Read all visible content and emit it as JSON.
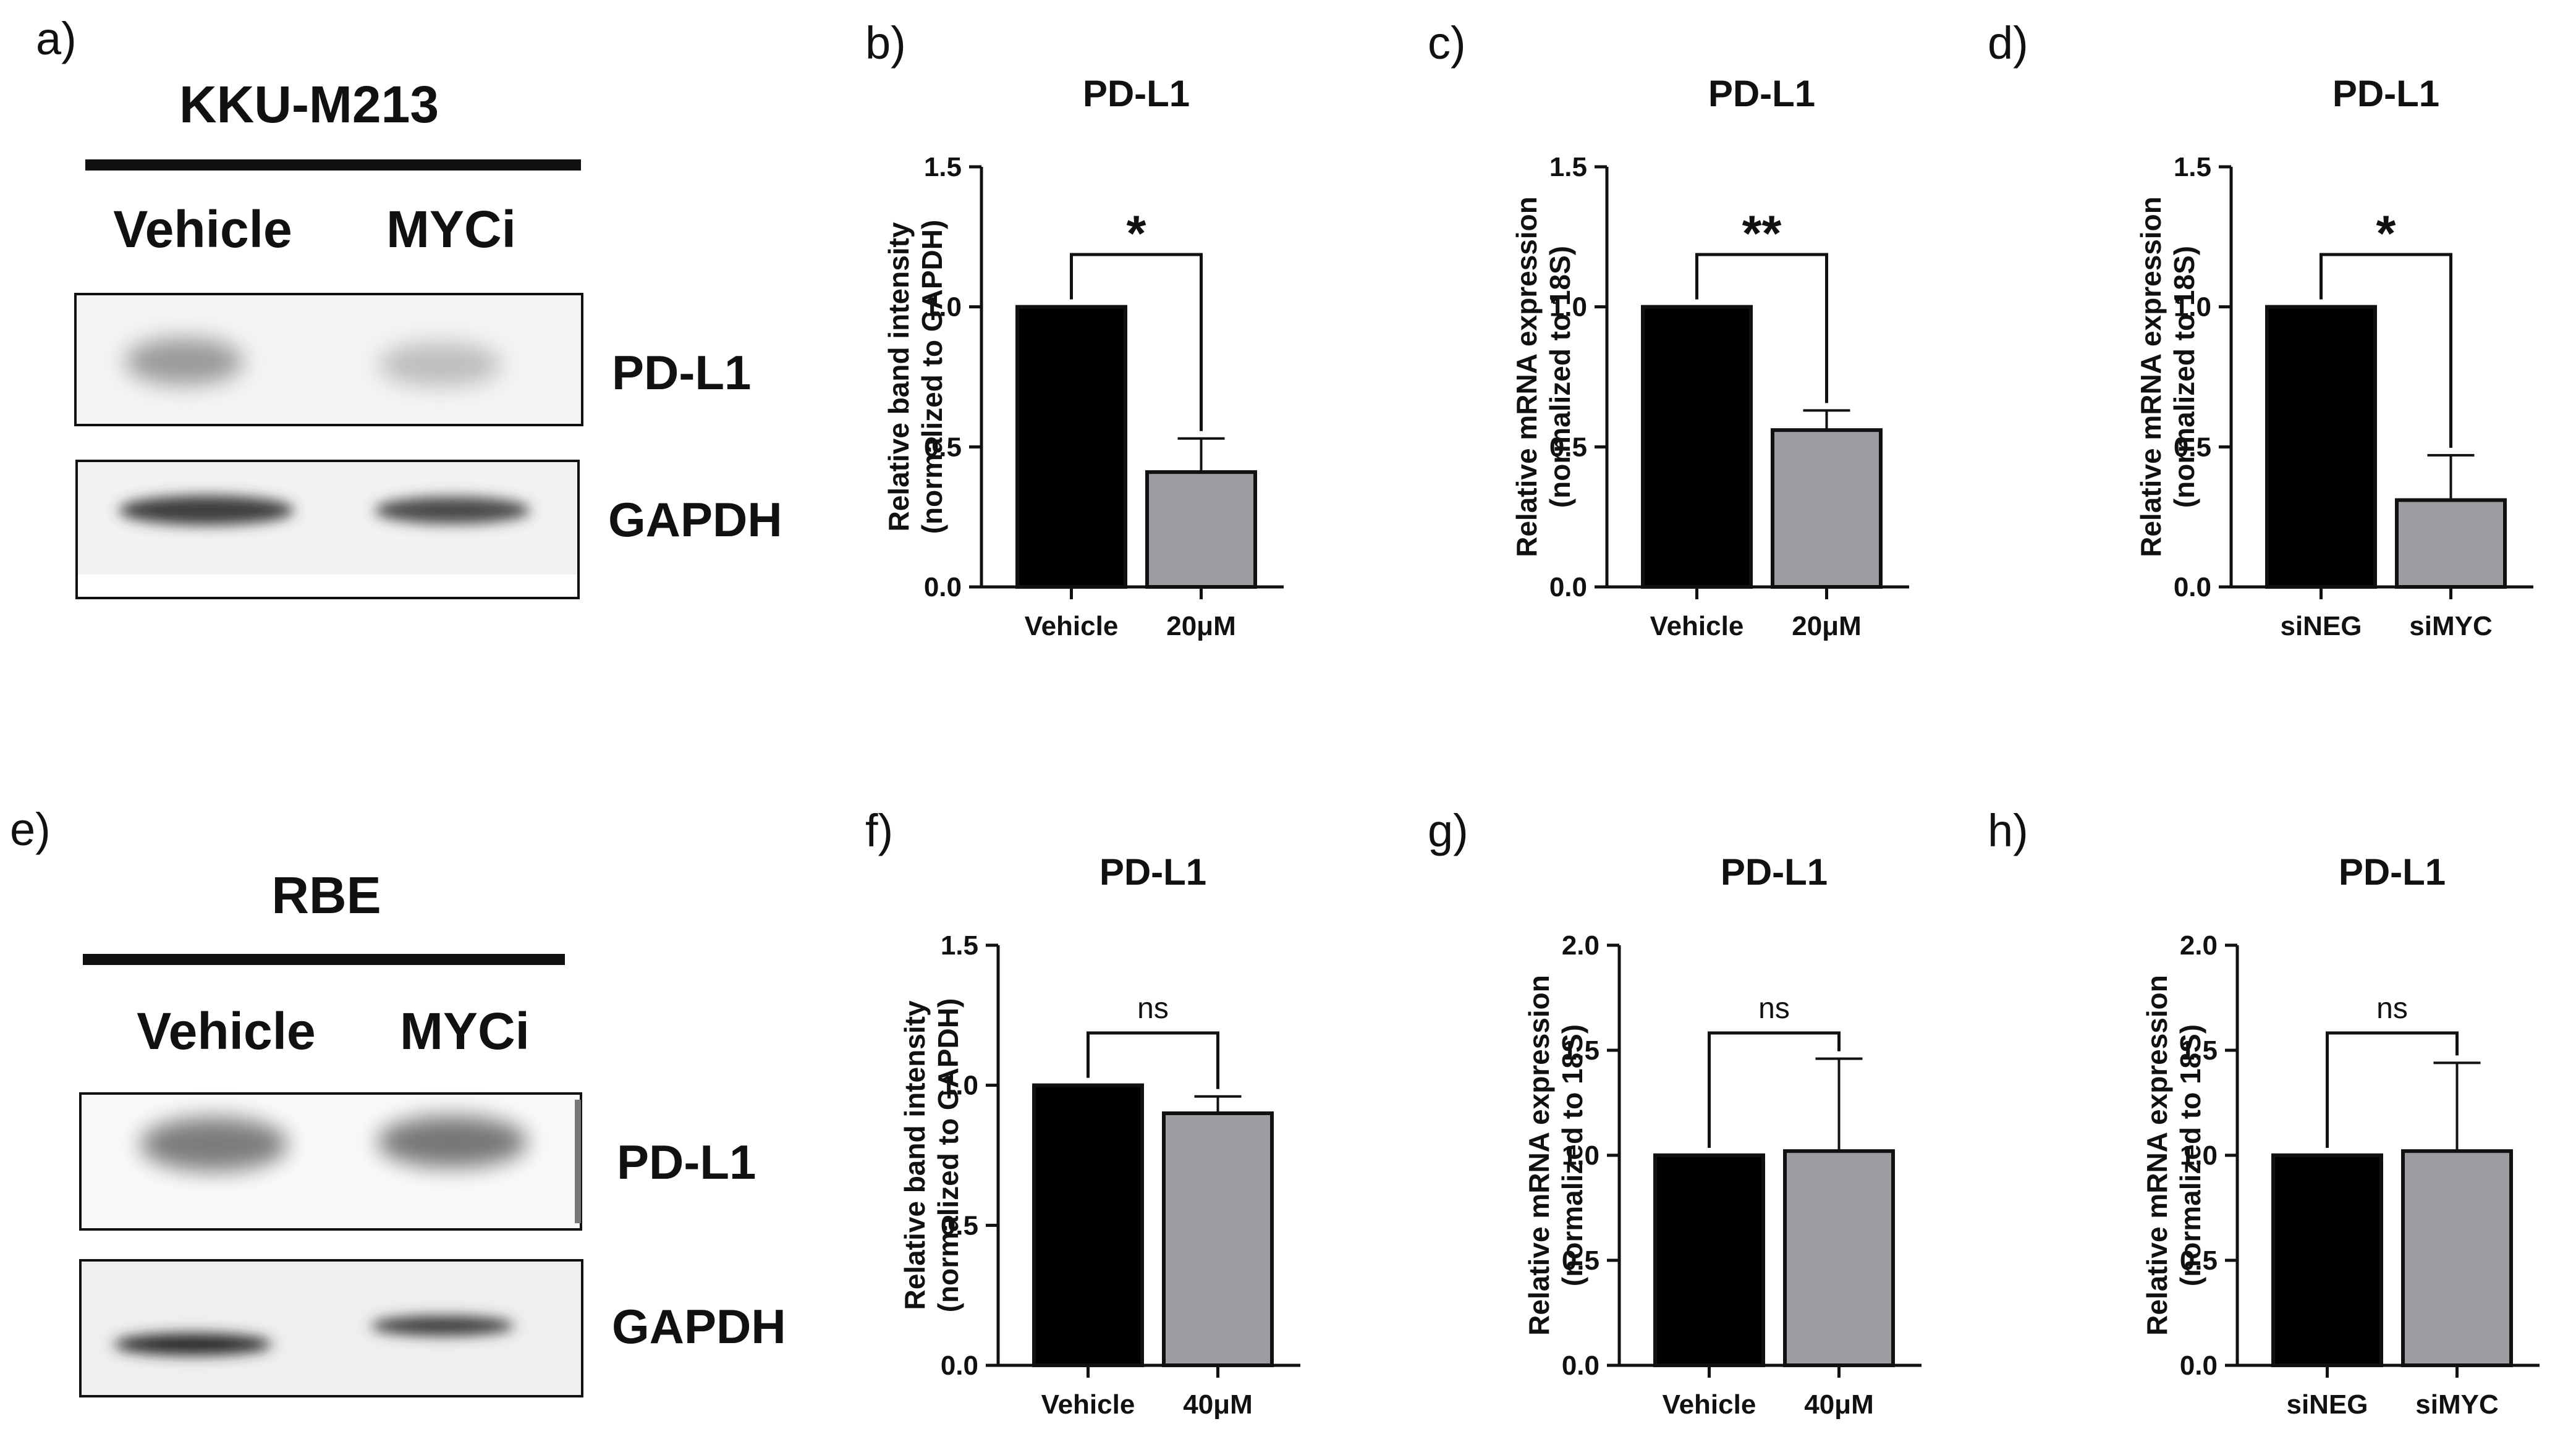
{
  "blots": [
    {
      "panel": "a)",
      "title": "KKU-M213",
      "lanes": [
        "Vehicle",
        "MYCi"
      ],
      "proteins": [
        "PD-L1",
        "GAPDH"
      ]
    },
    {
      "panel": "e)",
      "title": "RBE",
      "lanes": [
        "Vehicle",
        "MYCi"
      ],
      "proteins": [
        "PD-L1",
        "GAPDH"
      ]
    }
  ],
  "chart_data": [
    {
      "panel": "b)",
      "type": "bar",
      "title": "PD-L1",
      "categories": [
        "Vehicle",
        "20μM"
      ],
      "values": [
        1.0,
        0.41
      ],
      "errors": [
        0,
        0.12
      ],
      "ylabel_lines": [
        "Relative band intensity",
        "(normalized to GAPDH)"
      ],
      "ylim": [
        0,
        1.5
      ],
      "yticks": [
        "0.0",
        "0.5",
        "1.0",
        "1.5"
      ],
      "ytick_values": [
        0,
        0.5,
        1.0,
        1.5
      ],
      "significance": "*",
      "colors": [
        "#000000",
        "#9d9da1"
      ]
    },
    {
      "panel": "c)",
      "type": "bar",
      "title": "PD-L1",
      "categories": [
        "Vehicle",
        "20μM"
      ],
      "values": [
        1.0,
        0.56
      ],
      "errors": [
        0,
        0.07
      ],
      "ylabel_lines": [
        "Relative mRNA expression",
        "(normalized to 18S)"
      ],
      "ylim": [
        0,
        1.5
      ],
      "yticks": [
        "0.0",
        "0.5",
        "1.0",
        "1.5"
      ],
      "ytick_values": [
        0,
        0.5,
        1.0,
        1.5
      ],
      "significance": "**",
      "colors": [
        "#000000",
        "#9d9da1"
      ]
    },
    {
      "panel": "d)",
      "type": "bar",
      "title": "PD-L1",
      "categories": [
        "siNEG",
        "siMYC"
      ],
      "values": [
        1.0,
        0.31
      ],
      "errors": [
        0,
        0.16
      ],
      "ylabel_lines": [
        "Relative mRNA expression",
        "(normalized to 18S)"
      ],
      "ylim": [
        0,
        1.5
      ],
      "yticks": [
        "0.0",
        "0.5",
        "1.0",
        "1.5"
      ],
      "ytick_values": [
        0,
        0.5,
        1.0,
        1.5
      ],
      "significance": "*",
      "colors": [
        "#000000",
        "#9d9da1"
      ]
    },
    {
      "panel": "f)",
      "type": "bar",
      "title": "PD-L1",
      "categories": [
        "Vehicle",
        "40μM"
      ],
      "values": [
        1.0,
        0.9
      ],
      "errors": [
        0,
        0.06
      ],
      "ylabel_lines": [
        "Relative band intensity",
        "(normalized to GAPDH)"
      ],
      "ylim": [
        0,
        1.5
      ],
      "yticks": [
        "0.0",
        "0.5",
        "1.0",
        "1.5"
      ],
      "ytick_values": [
        0,
        0.5,
        1.0,
        1.5
      ],
      "significance": "ns",
      "colors": [
        "#000000",
        "#9d9da1"
      ]
    },
    {
      "panel": "g)",
      "type": "bar",
      "title": "PD-L1",
      "categories": [
        "Vehicle",
        "40μM"
      ],
      "values": [
        1.0,
        1.02
      ],
      "errors": [
        0,
        0.44
      ],
      "ylabel_lines": [
        "Relative mRNA expression",
        "(normalized to 18S)"
      ],
      "ylim": [
        0,
        2.0
      ],
      "yticks": [
        "0.0",
        "0.5",
        "1.0",
        "1.5",
        "2.0"
      ],
      "ytick_values": [
        0,
        0.5,
        1.0,
        1.5,
        2.0
      ],
      "significance": "ns",
      "colors": [
        "#000000",
        "#9d9da1"
      ]
    },
    {
      "panel": "h)",
      "type": "bar",
      "title": "PD-L1",
      "categories": [
        "siNEG",
        "siMYC"
      ],
      "values": [
        1.0,
        1.02
      ],
      "errors": [
        0,
        0.42
      ],
      "ylabel_lines": [
        "Relative mRNA expression",
        "(normalized to 18S)"
      ],
      "ylim": [
        0,
        2.0
      ],
      "yticks": [
        "0.0",
        "0.5",
        "1.0",
        "1.5",
        "2.0"
      ],
      "ytick_values": [
        0,
        0.5,
        1.0,
        1.5,
        2.0
      ],
      "significance": "ns",
      "colors": [
        "#000000",
        "#9d9da1"
      ]
    }
  ]
}
